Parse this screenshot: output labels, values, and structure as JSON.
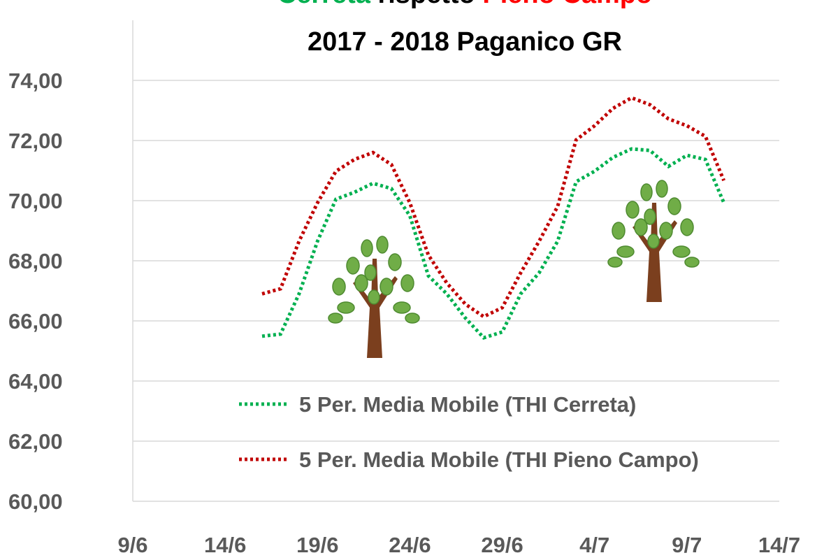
{
  "chart_data": {
    "type": "line",
    "title_parts": [
      {
        "text": "Cerreta",
        "color": "#00b050"
      },
      {
        "text": "rispetto",
        "color": "#000000"
      },
      {
        "text": "Pieno Campo",
        "color": "#ff0000"
      }
    ],
    "subtitle": "2017 - 2018 Paganico GR",
    "x": [
      "16/6",
      "17/6",
      "18/6",
      "19/6",
      "20/6",
      "21/6",
      "22/6",
      "23/6",
      "24/6",
      "25/6",
      "26/6",
      "27/6",
      "28/6",
      "29/6",
      "30/6",
      "1/7",
      "2/7",
      "3/7",
      "4/7",
      "5/7",
      "6/7",
      "7/7",
      "8/7",
      "9/7",
      "10/7",
      "11/7"
    ],
    "series": [
      {
        "name": "5 Per. Media Mobile (THI Cerreta)",
        "color": "#00b050",
        "values": [
          65.49,
          65.56,
          66.9,
          68.65,
          70.05,
          70.28,
          70.58,
          70.4,
          69.5,
          67.5,
          66.9,
          66.1,
          65.44,
          65.63,
          66.9,
          67.6,
          68.65,
          70.63,
          70.98,
          71.44,
          71.72,
          71.67,
          71.14,
          71.51,
          71.37,
          69.93
        ]
      },
      {
        "name": "5 Per. Media Mobile (THI Pieno Campo)",
        "color": "#c00000",
        "values": [
          66.9,
          67.07,
          68.65,
          69.93,
          70.98,
          71.37,
          71.6,
          71.2,
          69.93,
          68.19,
          67.26,
          66.56,
          66.14,
          66.44,
          67.6,
          68.65,
          69.81,
          72.02,
          72.49,
          73.07,
          73.42,
          73.19,
          72.72,
          72.49,
          72.14,
          70.67
        ]
      }
    ],
    "xlim": [
      "9/6",
      "14/7"
    ],
    "xticks": [
      "9/6",
      "14/6",
      "19/6",
      "24/6",
      "29/6",
      "4/7",
      "9/7",
      "14/7"
    ],
    "ylim": [
      60,
      76
    ],
    "yticks": [
      {
        "value": 60,
        "label": "60,00"
      },
      {
        "value": 62,
        "label": "62,00"
      },
      {
        "value": 64,
        "label": "64,00"
      },
      {
        "value": 66,
        "label": "66,00"
      },
      {
        "value": 68,
        "label": "68,00"
      },
      {
        "value": 70,
        "label": "70,00"
      },
      {
        "value": 72,
        "label": "72,00"
      },
      {
        "value": 74,
        "label": "74,00"
      }
    ],
    "grid": true
  }
}
